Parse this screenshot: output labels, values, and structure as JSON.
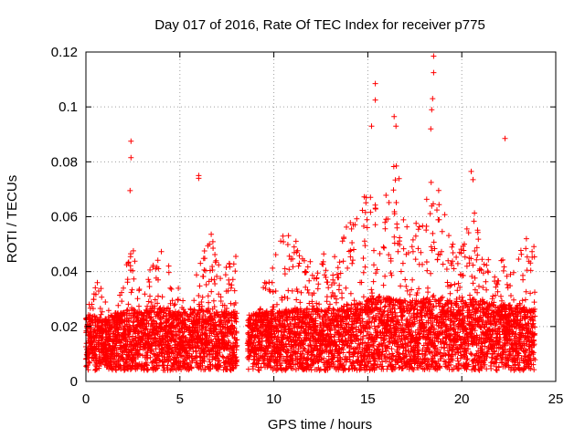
{
  "chart_data": {
    "type": "scatter",
    "title": "Day 017 of 2016, Rate Of TEC Index for receiver p775",
    "xlabel": "GPS time / hours",
    "ylabel": "ROTI / TECUs",
    "xlim": [
      0,
      25
    ],
    "ylim": [
      0,
      0.12
    ],
    "xticks": [
      0,
      5,
      10,
      15,
      20,
      25
    ],
    "xtick_labels": [
      "0",
      "5",
      "10",
      "15",
      "20",
      "25"
    ],
    "yticks": [
      0,
      0.02,
      0.04,
      0.06,
      0.08,
      0.1,
      0.12
    ],
    "ytick_labels": [
      "0",
      "0.02",
      "0.04",
      "0.06",
      "0.08",
      "0.1",
      "0.12"
    ],
    "grid": true,
    "marker": "+",
    "color": "#ff0000",
    "data_gap_hours": [
      8.05,
      8.6
    ],
    "notable_points": [
      {
        "x": 2.4,
        "y": 0.0875
      },
      {
        "x": 2.4,
        "y": 0.0815
      },
      {
        "x": 2.35,
        "y": 0.0695
      },
      {
        "x": 6.0,
        "y": 0.075
      },
      {
        "x": 6.0,
        "y": 0.074
      },
      {
        "x": 15.4,
        "y": 0.1085
      },
      {
        "x": 15.4,
        "y": 0.1025
      },
      {
        "x": 15.2,
        "y": 0.093
      },
      {
        "x": 16.4,
        "y": 0.0965
      },
      {
        "x": 16.5,
        "y": 0.093
      },
      {
        "x": 18.5,
        "y": 0.1185
      },
      {
        "x": 18.5,
        "y": 0.1125
      },
      {
        "x": 18.45,
        "y": 0.103
      },
      {
        "x": 18.4,
        "y": 0.099
      },
      {
        "x": 18.35,
        "y": 0.092
      },
      {
        "x": 22.3,
        "y": 0.0885
      },
      {
        "x": 20.5,
        "y": 0.0765
      },
      {
        "x": 20.6,
        "y": 0.0735
      }
    ],
    "envelope": [
      {
        "x": 0.0,
        "base": 0.01,
        "peak": 0.022
      },
      {
        "x": 0.5,
        "base": 0.011,
        "peak": 0.04
      },
      {
        "x": 1.0,
        "base": 0.011,
        "peak": 0.03
      },
      {
        "x": 1.5,
        "base": 0.011,
        "peak": 0.025
      },
      {
        "x": 2.0,
        "base": 0.012,
        "peak": 0.036
      },
      {
        "x": 2.4,
        "base": 0.013,
        "peak": 0.052
      },
      {
        "x": 3.0,
        "base": 0.012,
        "peak": 0.03
      },
      {
        "x": 3.5,
        "base": 0.013,
        "peak": 0.045
      },
      {
        "x": 4.2,
        "base": 0.013,
        "peak": 0.05
      },
      {
        "x": 4.8,
        "base": 0.012,
        "peak": 0.036
      },
      {
        "x": 5.5,
        "base": 0.012,
        "peak": 0.025
      },
      {
        "x": 6.0,
        "base": 0.013,
        "peak": 0.045
      },
      {
        "x": 6.7,
        "base": 0.013,
        "peak": 0.055
      },
      {
        "x": 7.3,
        "base": 0.012,
        "peak": 0.04
      },
      {
        "x": 8.0,
        "base": 0.012,
        "peak": 0.049
      },
      {
        "x": 8.6,
        "base": 0.011,
        "peak": 0.02
      },
      {
        "x": 9.5,
        "base": 0.012,
        "peak": 0.038
      },
      {
        "x": 10.2,
        "base": 0.012,
        "peak": 0.056
      },
      {
        "x": 11.0,
        "base": 0.013,
        "peak": 0.055
      },
      {
        "x": 11.8,
        "base": 0.013,
        "peak": 0.045
      },
      {
        "x": 12.5,
        "base": 0.013,
        "peak": 0.048
      },
      {
        "x": 13.2,
        "base": 0.013,
        "peak": 0.045
      },
      {
        "x": 14.0,
        "base": 0.014,
        "peak": 0.06
      },
      {
        "x": 14.6,
        "base": 0.015,
        "peak": 0.064
      },
      {
        "x": 15.3,
        "base": 0.016,
        "peak": 0.075
      },
      {
        "x": 16.0,
        "base": 0.016,
        "peak": 0.068
      },
      {
        "x": 16.5,
        "base": 0.016,
        "peak": 0.082
      },
      {
        "x": 17.2,
        "base": 0.015,
        "peak": 0.055
      },
      {
        "x": 18.0,
        "base": 0.016,
        "peak": 0.062
      },
      {
        "x": 18.5,
        "base": 0.017,
        "peak": 0.08
      },
      {
        "x": 19.2,
        "base": 0.016,
        "peak": 0.06
      },
      {
        "x": 19.8,
        "base": 0.015,
        "peak": 0.045
      },
      {
        "x": 20.5,
        "base": 0.016,
        "peak": 0.068
      },
      {
        "x": 21.2,
        "base": 0.015,
        "peak": 0.045
      },
      {
        "x": 22.0,
        "base": 0.014,
        "peak": 0.048
      },
      {
        "x": 22.8,
        "base": 0.014,
        "peak": 0.045
      },
      {
        "x": 23.5,
        "base": 0.013,
        "peak": 0.055
      },
      {
        "x": 23.9,
        "base": 0.013,
        "peak": 0.05
      }
    ]
  }
}
